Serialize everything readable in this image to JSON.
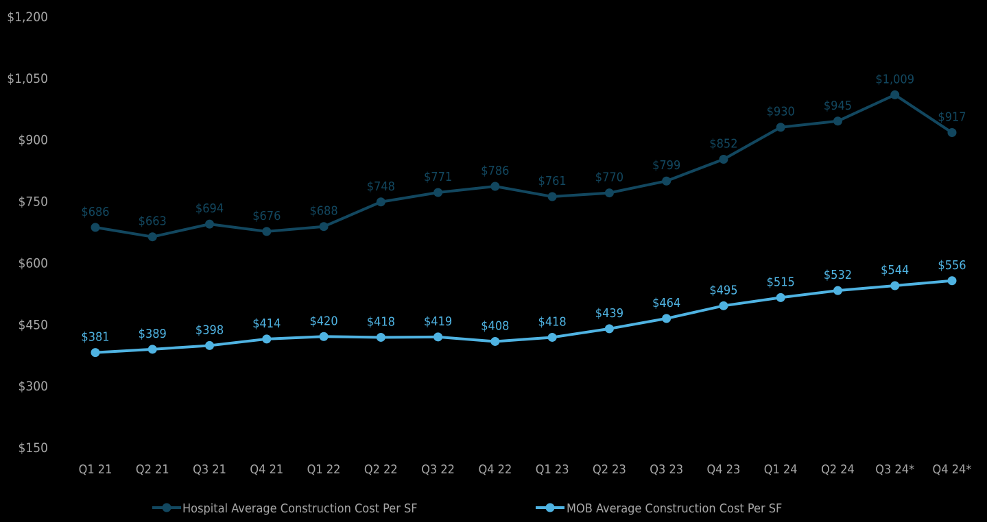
{
  "chart_data": {
    "type": "line",
    "categories": [
      "Q1 21",
      "Q2 21",
      "Q3 21",
      "Q4 21",
      "Q1 22",
      "Q2 22",
      "Q3 22",
      "Q4 22",
      "Q1 23",
      "Q2 23",
      "Q3 23",
      "Q4 23",
      "Q1 24",
      "Q2 24",
      "Q3 24*",
      "Q4 24*"
    ],
    "series": [
      {
        "name": "Hospital Average Construction Cost Per SF",
        "color": "#12475f",
        "values": [
          686,
          663,
          694,
          676,
          688,
          748,
          771,
          786,
          761,
          770,
          799,
          852,
          930,
          945,
          1009,
          917
        ],
        "labels": [
          "$686",
          "$663",
          "$694",
          "$676",
          "$688",
          "$748",
          "$771",
          "$786",
          "$761",
          "$770",
          "$799",
          "$852",
          "$930",
          "$945",
          "$1,009",
          "$917"
        ]
      },
      {
        "name": "MOB Average Construction Cost Per SF",
        "color": "#4fb3e2",
        "values": [
          381,
          389,
          398,
          414,
          420,
          418,
          419,
          408,
          418,
          439,
          464,
          495,
          515,
          532,
          544,
          556
        ],
        "labels": [
          "$381",
          "$389",
          "$398",
          "$414",
          "$420",
          "$418",
          "$419",
          "$408",
          "$418",
          "$439",
          "$464",
          "$495",
          "$515",
          "$532",
          "$544",
          "$556"
        ]
      }
    ],
    "yticks": [
      150,
      300,
      450,
      600,
      750,
      900,
      1050,
      1200
    ],
    "ytick_labels": [
      "$150",
      "$300",
      "$450",
      "$600",
      "$750",
      "$900",
      "$1,050",
      "$1,200"
    ],
    "ylim": [
      150,
      1200
    ],
    "grid": false,
    "legend_position": "bottom",
    "title": "",
    "xlabel": "",
    "ylabel": ""
  }
}
